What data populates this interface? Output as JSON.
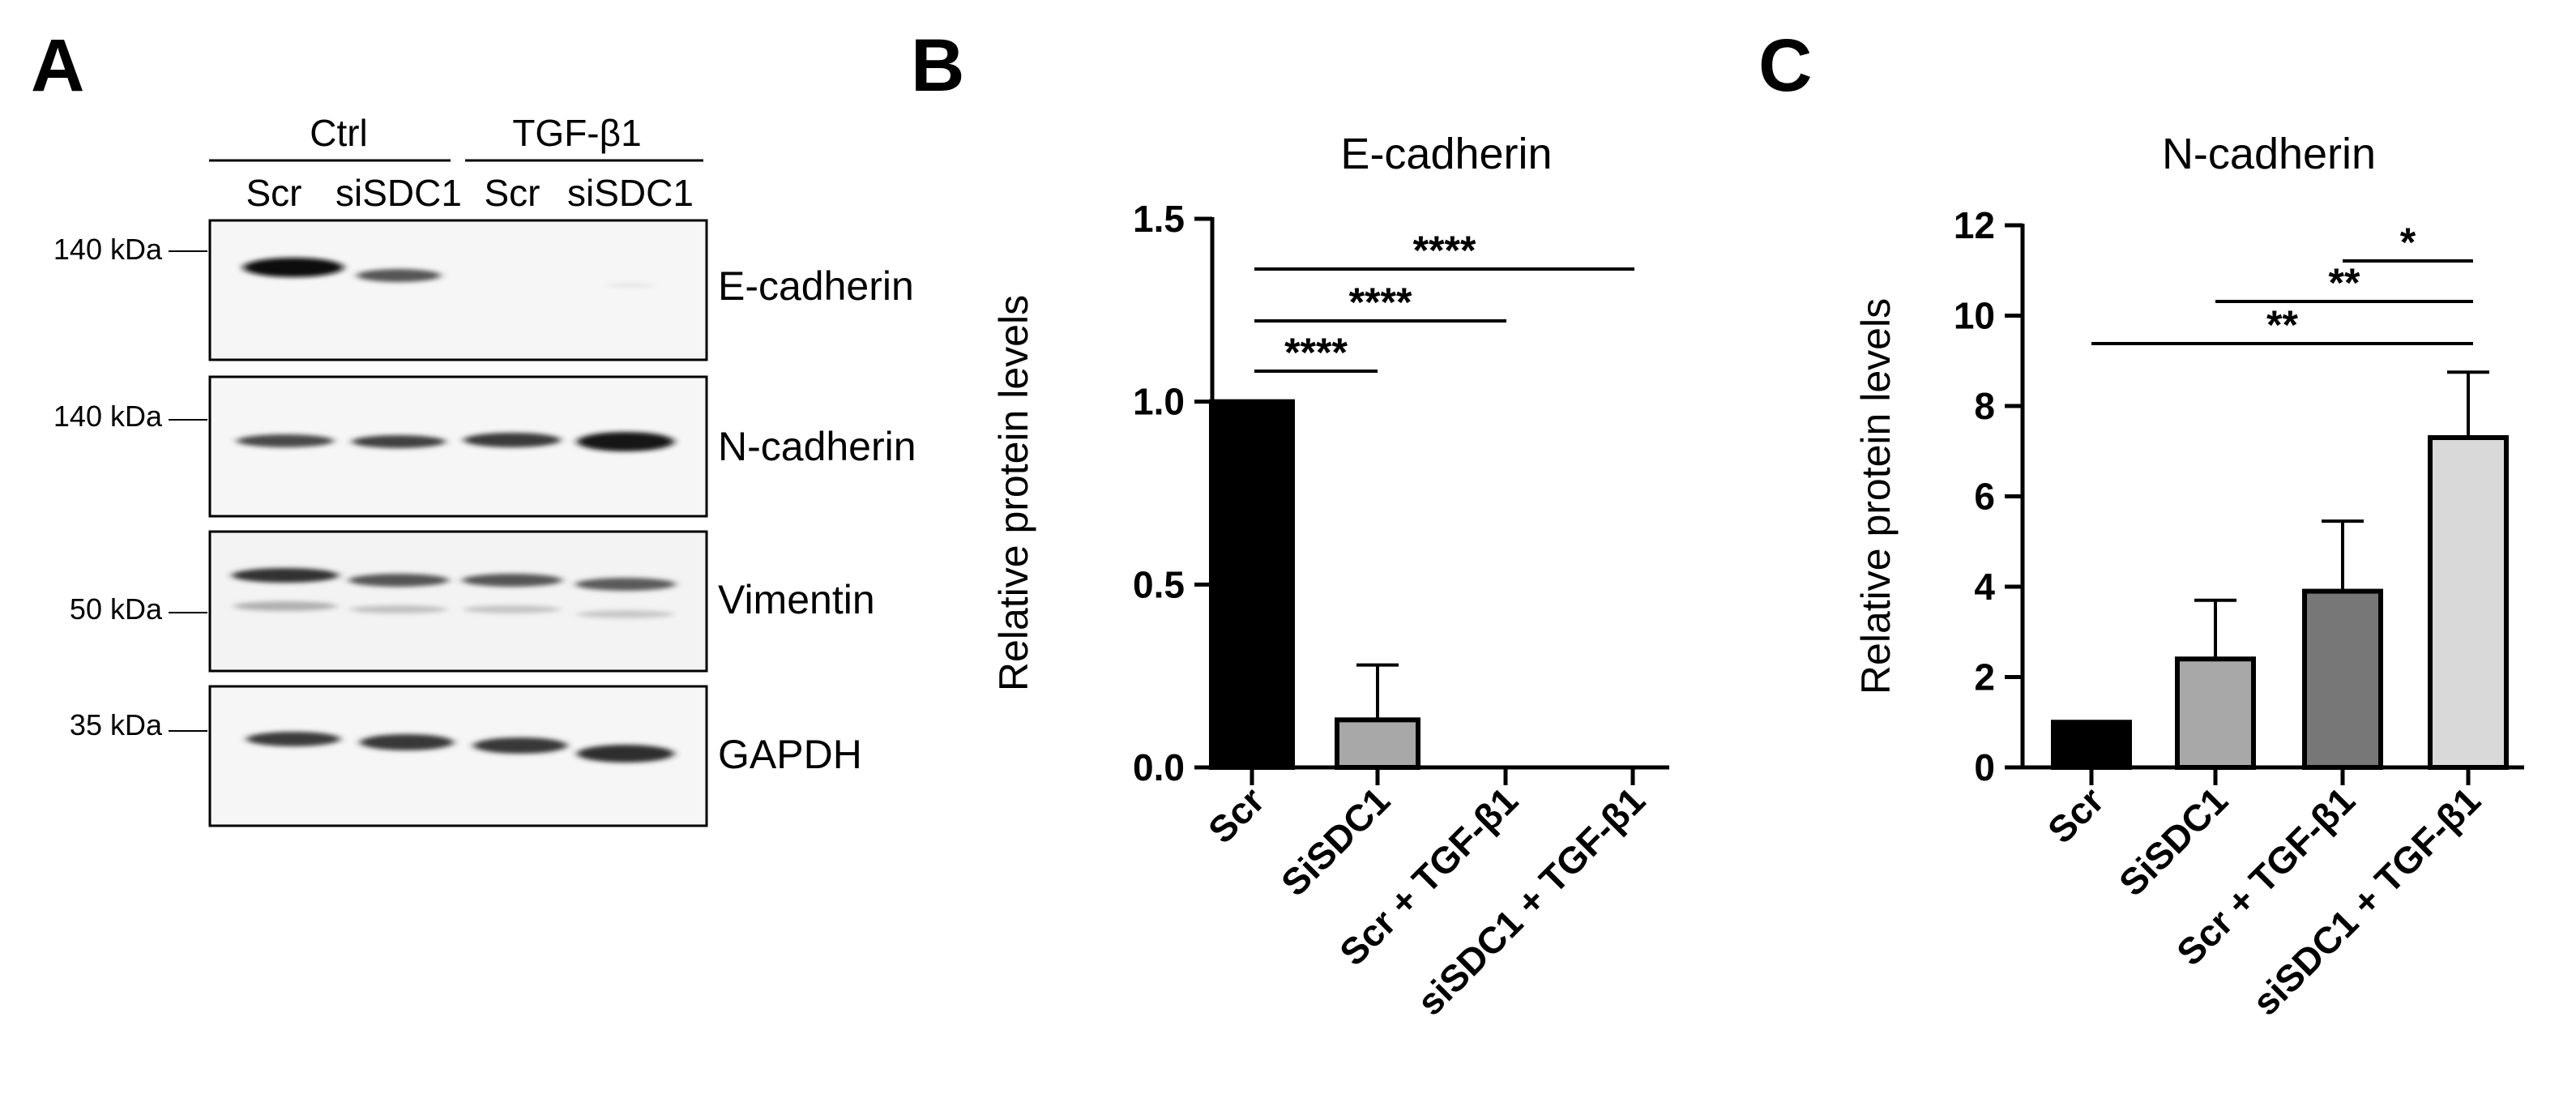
{
  "panels": {
    "a": {
      "letter": "A",
      "groups": [
        "Ctrl",
        "TGF-β1"
      ],
      "lanes": [
        "Scr",
        "siSDC1",
        "Scr",
        "siSDC1"
      ],
      "blots": [
        {
          "protein": "E-cadherin",
          "marker": "140 kDa"
        },
        {
          "protein": "N-cadherin",
          "marker": "140 kDa"
        },
        {
          "protein": "Vimentin",
          "marker": "50 kDa"
        },
        {
          "protein": "GAPDH",
          "marker": "35 kDa"
        }
      ]
    },
    "b": {
      "letter": "B"
    },
    "c": {
      "letter": "C"
    }
  },
  "chart_data": [
    {
      "type": "bar",
      "title": "E-cadherin",
      "ylabel": "Relative protein levels",
      "xlabel": "",
      "categories": [
        "Scr",
        "SiSDC1",
        "Scr + TGF-β1",
        "siSDC1 + TGF-β1"
      ],
      "values": [
        1.0,
        0.13,
        0.0,
        0.0
      ],
      "errors": [
        0.0,
        0.15,
        0.0,
        0.0
      ],
      "colors": [
        "#000000",
        "#a8a8a8",
        "#777777",
        "#d9d9d9"
      ],
      "ylim": [
        0,
        1.5
      ],
      "yticks": [
        "0.0",
        "0.5",
        "1.0",
        "1.5"
      ],
      "significance": [
        {
          "from": 0,
          "to": 3,
          "label": "****"
        },
        {
          "from": 0,
          "to": 2,
          "label": "****"
        },
        {
          "from": 0,
          "to": 1,
          "label": "****"
        }
      ]
    },
    {
      "type": "bar",
      "title": "N-cadherin",
      "ylabel": "Relative protein levels",
      "xlabel": "",
      "categories": [
        "Scr",
        "SiSDC1",
        "Scr + TGF-β1",
        "siSDC1 + TGF-β1"
      ],
      "values": [
        1.0,
        2.4,
        3.9,
        7.3
      ],
      "errors": [
        0.0,
        1.3,
        1.55,
        1.45
      ],
      "colors": [
        "#000000",
        "#a8a8a8",
        "#777777",
        "#d9d9d9"
      ],
      "ylim": [
        0,
        12
      ],
      "yticks": [
        "0",
        "2",
        "4",
        "6",
        "8",
        "10",
        "12"
      ],
      "significance": [
        {
          "from": 2,
          "to": 3,
          "label": "*"
        },
        {
          "from": 1,
          "to": 3,
          "label": "**"
        },
        {
          "from": 0,
          "to": 3,
          "label": "**"
        }
      ]
    }
  ]
}
